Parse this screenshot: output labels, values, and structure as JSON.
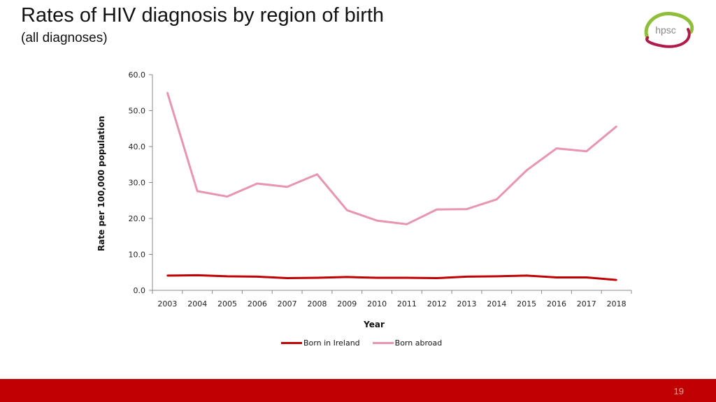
{
  "slide": {
    "title": "Rates of HIV diagnosis by region of birth",
    "subtitle": "(all diagnoses)",
    "logo_text": "hpsc",
    "page_number": "19",
    "footer_color": "#c00000"
  },
  "chart_data": {
    "type": "line",
    "xlabel": "Year",
    "ylabel": "Rate per 100,000 population",
    "ylim": [
      0,
      60
    ],
    "yticks": [
      "0.0",
      "10.0",
      "20.0",
      "30.0",
      "40.0",
      "50.0",
      "60.0"
    ],
    "x": [
      "2003",
      "2004",
      "2005",
      "2006",
      "2007",
      "2008",
      "2009",
      "2010",
      "2011",
      "2012",
      "2013",
      "2014",
      "2015",
      "2016",
      "2017",
      "2018"
    ],
    "series": [
      {
        "name": "Born in Ireland",
        "color": "#c00000",
        "values": [
          4.1,
          4.2,
          3.9,
          3.8,
          3.4,
          3.5,
          3.7,
          3.5,
          3.5,
          3.4,
          3.8,
          3.9,
          4.1,
          3.6,
          3.6,
          2.9
        ]
      },
      {
        "name": "Born abroad",
        "color": "#e895b2",
        "values": [
          55.0,
          27.6,
          26.1,
          29.7,
          28.8,
          32.3,
          22.3,
          19.4,
          18.4,
          22.5,
          22.6,
          25.3,
          33.4,
          39.5,
          38.7,
          45.6
        ]
      }
    ],
    "legend_position": "bottom",
    "grid": false
  }
}
